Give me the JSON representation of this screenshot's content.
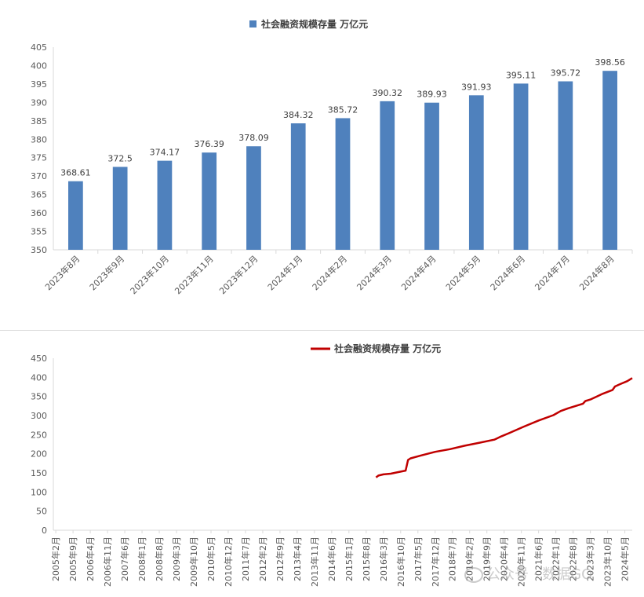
{
  "chart_data": [
    {
      "type": "bar",
      "legend": "社会融资规模存量 万亿元",
      "legend_position": "top",
      "color": "#4f81bd",
      "categories": [
        "2023年8月",
        "2023年9月",
        "2023年10月",
        "2023年11月",
        "2023年12月",
        "2024年1月",
        "2024年2月",
        "2024年3月",
        "2024年4月",
        "2024年5月",
        "2024年6月",
        "2024年7月",
        "2024年8月"
      ],
      "values": [
        368.61,
        372.5,
        374.17,
        376.39,
        378.09,
        384.32,
        385.72,
        390.32,
        389.93,
        391.93,
        395.11,
        395.72,
        398.56
      ],
      "data_labels": [
        "368.61",
        "372.5",
        "374.17",
        "376.39",
        "378.09",
        "384.32",
        "385.72",
        "390.32",
        "389.93",
        "391.93",
        "395.11",
        "395.72",
        "398.56"
      ],
      "ylim": [
        350,
        405
      ],
      "yticks": [
        350,
        355,
        360,
        365,
        370,
        375,
        380,
        385,
        390,
        395,
        400,
        405
      ],
      "grid": false
    },
    {
      "type": "line",
      "legend": "社会融资规模存量 万亿元",
      "legend_position": "top",
      "color": "#c00000",
      "ylim": [
        0,
        450
      ],
      "yticks": [
        0,
        50,
        100,
        150,
        200,
        250,
        300,
        350,
        400,
        450
      ],
      "xtick_labels": [
        "2005年2月",
        "2005年9月",
        "2006年4月",
        "2006年11月",
        "2007年6月",
        "2008年1月",
        "2008年8月",
        "2009年3月",
        "2009年10月",
        "2010年5月",
        "2010年12月",
        "2011年7月",
        "2012年2月",
        "2012年9月",
        "2013年4月",
        "2013年11月",
        "2014年6月",
        "2015年1月",
        "2015年8月",
        "2016年3月",
        "2016年10月",
        "2017年5月",
        "2017年12月",
        "2018年7月",
        "2019年2月",
        "2019年9月",
        "2020年4月",
        "2020年11月",
        "2021年6月",
        "2022年1月",
        "2022年8月",
        "2023年3月",
        "2023年10月",
        "2024年5月"
      ],
      "series": [
        {
          "x": [
            "2015年12月",
            "2016年1月",
            "2016年3月",
            "2016年6月",
            "2016年9月",
            "2016年12月",
            "2017年1月",
            "2017年2月",
            "2017年6月",
            "2017年12月",
            "2018年6月",
            "2018年12月",
            "2019年6月",
            "2019年12月",
            "2020年3月",
            "2020年6月",
            "2020年12月",
            "2021年6月",
            "2021年12月",
            "2022年3月",
            "2022年6月",
            "2022年12月",
            "2023年1月",
            "2023年3月",
            "2023年6月",
            "2023年8月",
            "2023年12月",
            "2024年1月",
            "2024年3月",
            "2024年6月",
            "2024年8月"
          ],
          "values": [
            138,
            143,
            146,
            148,
            152,
            156,
            184,
            188,
            195,
            205,
            212,
            221,
            229,
            237,
            246,
            254,
            271,
            287,
            301,
            312,
            319,
            331,
            338,
            342,
            351,
            357,
            367,
            376,
            382,
            390,
            398
          ]
        }
      ]
    }
  ],
  "watermark": {
    "text": "公众号 · 数据GO",
    "icon": "wechat-icon"
  }
}
